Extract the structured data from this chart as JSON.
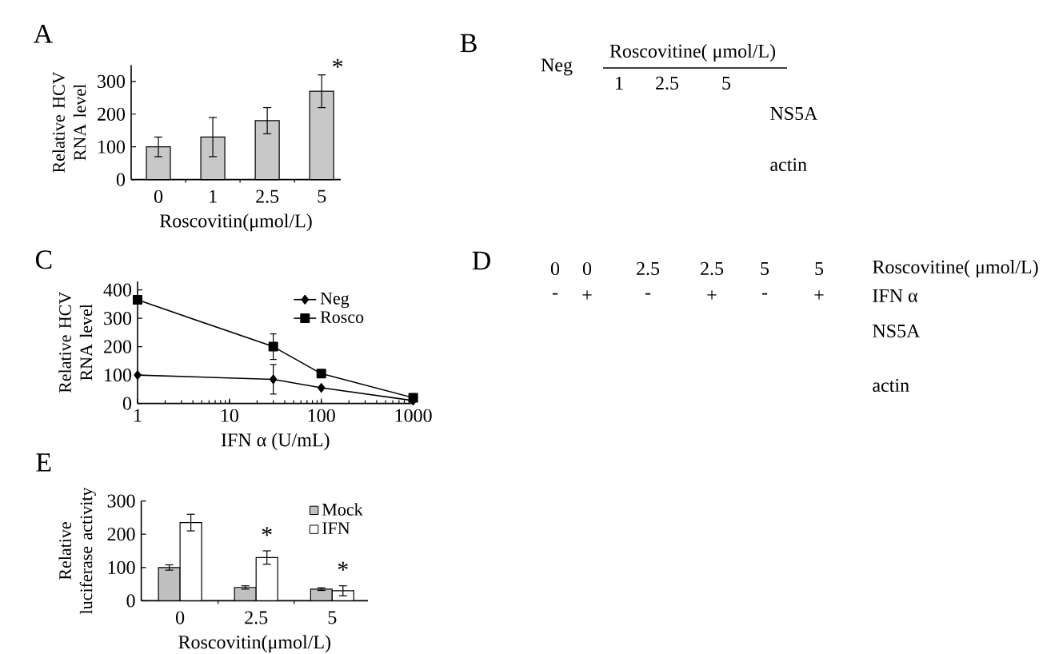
{
  "chart_data": [
    {
      "type": "bar",
      "title": "A",
      "categories": [
        "0",
        "1",
        "2.5",
        "5"
      ],
      "values": [
        100,
        130,
        180,
        270
      ],
      "errors": [
        30,
        60,
        40,
        50
      ],
      "color": "#c8c8c8",
      "xlabel": "Roscovitin(μmol/L)",
      "ylabel": "Relative HCV RNA level",
      "ylim": [
        0,
        350
      ],
      "yticks": [
        0,
        100,
        200,
        300
      ],
      "annotations": [
        {
          "text": "*",
          "x": "5",
          "y": 320
        }
      ]
    },
    {
      "type": "other",
      "title": "B",
      "categories": [
        "Neg",
        "1",
        "2.5",
        "5"
      ],
      "xlabel": "Roscovitine( μmol/L)",
      "annotations": [
        "NS5A",
        "actin"
      ]
    },
    {
      "type": "line",
      "title": "C",
      "x": [
        1,
        30,
        100,
        1000
      ],
      "series": [
        {
          "name": "Neg",
          "color": "#000000",
          "marker": "diamond",
          "values": [
            100,
            85,
            55,
            10
          ],
          "errors": [
            null,
            52,
            null,
            null
          ]
        },
        {
          "name": "Rosco",
          "color": "#000000",
          "marker": "square",
          "values": [
            365,
            200,
            105,
            20
          ],
          "errors": [
            null,
            45,
            null,
            null
          ]
        }
      ],
      "log": "x",
      "xlim": [
        1,
        1000
      ],
      "xticks": [
        1,
        10,
        100,
        1000
      ],
      "ylim": [
        0,
        430
      ],
      "yticks": [
        0,
        100,
        200,
        300,
        400
      ],
      "xlabel": "IFN α (U/mL)",
      "ylabel": "Relative HCV RNA level",
      "legend": "top right"
    },
    {
      "type": "other",
      "title": "D",
      "categories": [
        "0",
        "0",
        "2.5",
        "2.5",
        "5",
        "5"
      ],
      "xlabel": "Roscovitine( μmol/L)",
      "annotations": [
        "-",
        "+",
        "-",
        "+",
        "-",
        "+",
        "IFN α",
        "NS5A",
        "actin"
      ]
    },
    {
      "type": "bar",
      "title": "E",
      "categories": [
        "0",
        "2.5",
        "5"
      ],
      "series": [
        {
          "name": "Mock",
          "color": "#c0c0c0",
          "values": [
            100,
            40,
            35
          ],
          "errors": [
            8,
            5,
            4
          ]
        },
        {
          "name": "IFN",
          "color": "#ffffff",
          "values": [
            235,
            130,
            30
          ],
          "errors": [
            25,
            20,
            15
          ]
        }
      ],
      "xlabel": "Roscovitin(μmol/L)",
      "ylabel": "Relative luciferase activity",
      "ylim": [
        0,
        300
      ],
      "yticks": [
        0,
        100,
        200,
        300
      ],
      "legend": "top right",
      "annotations": [
        {
          "text": "*",
          "x": "2.5",
          "y": 150
        },
        {
          "text": "*",
          "x": "5",
          "y": 45
        }
      ]
    }
  ]
}
